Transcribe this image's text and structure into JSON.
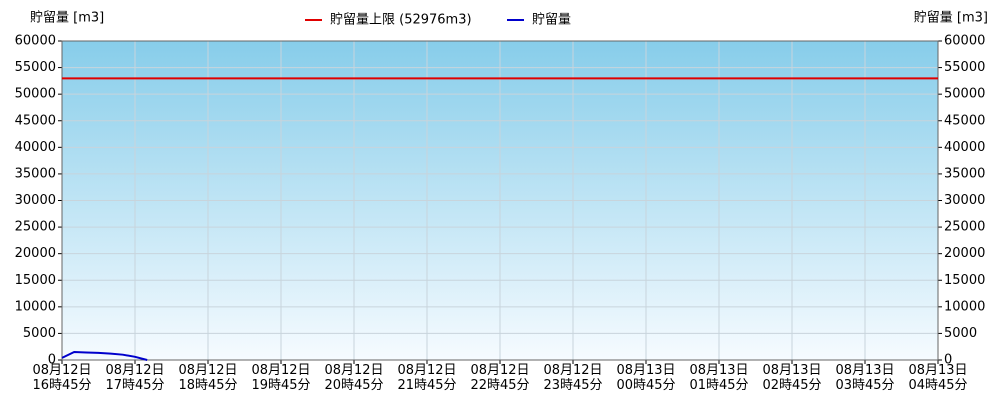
{
  "chart_data": {
    "type": "line",
    "y_label": "貯留量 [m3]",
    "y2_label": "貯留量 [m3]",
    "limit": {
      "name": "貯留量上限 (52976m3)",
      "value": 52976,
      "color": "#e00000"
    },
    "series": [
      {
        "name": "貯留量",
        "color": "#0000cc",
        "x": [
          0,
          10,
          20,
          30,
          40,
          50,
          60,
          70
        ],
        "values": [
          400,
          1500,
          1400,
          1350,
          1200,
          1000,
          600,
          0
        ]
      }
    ],
    "xlim": [
      0,
      720
    ],
    "xticks": [
      {
        "value": 0,
        "label": "08月12日\n16時45分"
      },
      {
        "value": 60,
        "label": "08月12日\n17時45分"
      },
      {
        "value": 120,
        "label": "08月12日\n18時45分"
      },
      {
        "value": 180,
        "label": "08月12日\n19時45分"
      },
      {
        "value": 240,
        "label": "08月12日\n20時45分"
      },
      {
        "value": 300,
        "label": "08月12日\n21時45分"
      },
      {
        "value": 360,
        "label": "08月12日\n22時45分"
      },
      {
        "value": 420,
        "label": "08月12日\n23時45分"
      },
      {
        "value": 480,
        "label": "08月13日\n00時45分"
      },
      {
        "value": 540,
        "label": "08月13日\n01時45分"
      },
      {
        "value": 600,
        "label": "08月13日\n02時45分"
      },
      {
        "value": 660,
        "label": "08月13日\n03時45分"
      },
      {
        "value": 720,
        "label": "08月13日\n04時45分"
      }
    ],
    "ylim": [
      0,
      60000
    ],
    "yticks": [
      0,
      5000,
      10000,
      15000,
      20000,
      25000,
      30000,
      35000,
      40000,
      45000,
      50000,
      55000,
      60000
    ],
    "y2lim": [
      0,
      60000
    ],
    "y2ticks": [
      0,
      5000,
      10000,
      15000,
      20000,
      25000,
      30000,
      35000,
      40000,
      45000,
      50000,
      55000,
      60000
    ],
    "grid": true
  }
}
